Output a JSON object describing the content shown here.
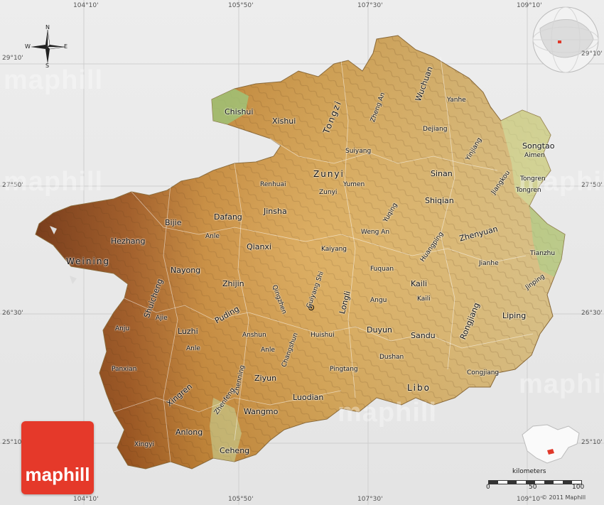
{
  "coords_top": [
    "104°10'",
    "105°50'",
    "107°30'",
    "109°10'"
  ],
  "coords_bottom": [
    "104°10'",
    "105°50'",
    "107°30'",
    "109°10'"
  ],
  "coords_left": [
    "29°10'",
    "27°50'",
    "26°30'",
    "25°10'"
  ],
  "coords_right": [
    "29°10'",
    "27°50'",
    "26°30'",
    "25°10'"
  ],
  "compass": {
    "n": "N",
    "s": "S",
    "e": "E",
    "w": "W"
  },
  "watermark": "maphill",
  "logo": "maphill",
  "scale": {
    "title": "kilometers",
    "ticks": [
      "0",
      "50",
      "100"
    ]
  },
  "copyright": "© 2011 Maphill",
  "places": {
    "chishui": "Chishui",
    "xishui": "Xishui",
    "tongzi": "Tongzi",
    "zhengan": "Zheng An",
    "wuchuan": "Wuchuan",
    "yanhe": "Yanhe",
    "dejiang": "Dejiang",
    "songtao": "Songtao",
    "aimen": "Aimen",
    "yinjiang": "Yinjiang",
    "jiangkou": "Jiangkou",
    "tongren": "Tongren",
    "tongren2": "Tongren",
    "suiyang": "Suiyang",
    "zunyi": "Zunyi",
    "zunyi2": "Zunyi",
    "yumen": "Yumen",
    "renhuai": "Renhuai",
    "sinan": "Sinan",
    "shiqian": "Shiqian",
    "jinsha": "Jinsha",
    "dafang": "Dafang",
    "bijie": "Bijie",
    "hezhang": "Hezhang",
    "weining": "Weining",
    "anle": "Anle",
    "qianxi": "Qianxi",
    "yuqing": "Yuqing",
    "wengan": "Weng An",
    "huangping": "Huangping",
    "zhenyuan": "Zhenyuan",
    "tianzhu": "Tianzhu",
    "jianhe": "Jianhe",
    "jinping": "Jinping",
    "kaiyang": "Kaiyang",
    "nayong": "Nayong",
    "qingzhen": "Qingzhen",
    "guiyang": "Guiyang Shi",
    "fuquan": "Fuquan",
    "longli": "Longli",
    "kaili": "Kaili",
    "kaili2": "Kaili",
    "zhijin": "Zhijin",
    "puding": "Puding",
    "shuicheng": "Shuicheng",
    "ajie": "Ajie",
    "angu": "Angu",
    "rongjiang": "Rongjiang",
    "liping": "Liping",
    "anju": "Anju",
    "luzhi": "Luzhi",
    "anshun": "Anshun",
    "huishui": "Huishui",
    "duyun": "Duyun",
    "sandu": "Sandu",
    "anle2": "Anle",
    "anle3": "Anle",
    "changshun": "Changshun",
    "dushan": "Dushan",
    "panxian": "Panxian",
    "zhenning": "Zhenning",
    "ziyun": "Ziyun",
    "pingtang": "Pingtang",
    "congjiang": "Congjiang",
    "libo": "Libo",
    "xingren": "Xingren",
    "zhenfeng": "Zhenfeng",
    "luodian": "Luodian",
    "wangmo": "Wangmo",
    "anlong": "Anlong",
    "xingyi": "Xingyi",
    "ceheng": "Ceheng"
  }
}
